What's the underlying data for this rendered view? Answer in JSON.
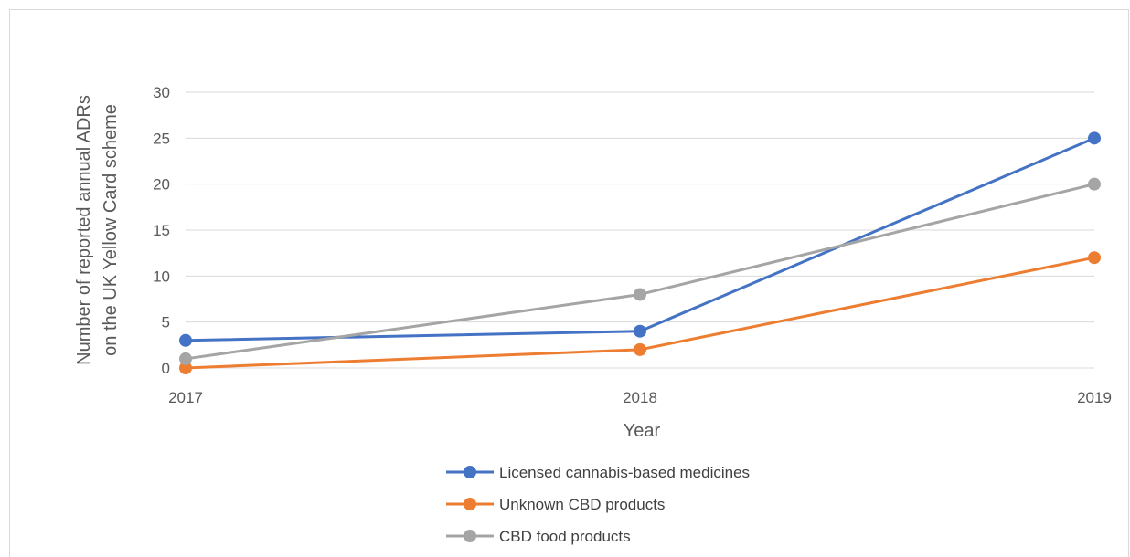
{
  "chart_data": {
    "type": "line",
    "title": "",
    "xlabel": "Year",
    "ylabel_lines": [
      "Number of reported annual ADRs",
      "on the UK Yellow Card scheme"
    ],
    "x": [
      "2017",
      "2018",
      "2019"
    ],
    "ylim": [
      0,
      30
    ],
    "yticks": [
      0,
      5,
      10,
      15,
      20,
      25,
      30
    ],
    "grid": true,
    "legend_position": "bottom",
    "series": [
      {
        "name": "Licensed cannabis-based medicines",
        "values": [
          3,
          4,
          25
        ],
        "color": "#4472c4"
      },
      {
        "name": "Unknown CBD products",
        "values": [
          0,
          2,
          12
        ],
        "color": "#ed7d31"
      },
      {
        "name": "CBD food products",
        "values": [
          1,
          8,
          20
        ],
        "color": "#a5a5a5"
      }
    ]
  }
}
